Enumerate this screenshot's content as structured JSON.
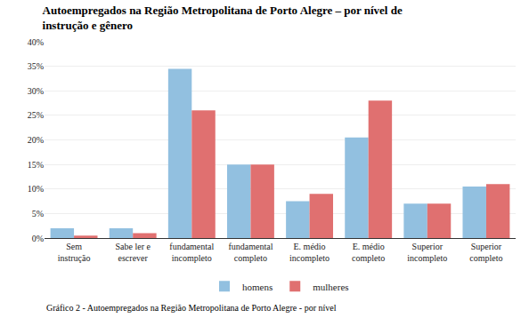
{
  "chart_data": {
    "type": "bar",
    "title": "Autoempregados na Região Metropolitana de Porto Alegre – por nível de\ninstrução e gênero",
    "caption": "Gráfico 2 - Autoempregados na Região Metropolitana de Porto Alegre - por nível",
    "categories": [
      "Sem\ninstrução",
      "Sabe ler e\nescrever",
      "fundamental\nincompleto",
      "fundamental\ncompleto",
      "E. médio\nincompleto",
      "E. médio\ncompleto",
      "Superior\nincompleto",
      "Superior\ncompleto"
    ],
    "series": [
      {
        "name": "homens",
        "color": "#92C0E0",
        "values": [
          2.0,
          2.0,
          34.5,
          15.0,
          7.5,
          20.5,
          7.0,
          10.5
        ]
      },
      {
        "name": "mulheres",
        "color": "#E07070",
        "values": [
          0.5,
          1.0,
          26.0,
          15.0,
          9.0,
          28.0,
          7.0,
          11.0
        ]
      }
    ],
    "ylim": [
      0,
      40
    ],
    "yticks": [
      {
        "value": 0,
        "label": "0%"
      },
      {
        "value": 5,
        "label": "5%"
      },
      {
        "value": 10,
        "label": "10%"
      },
      {
        "value": 15,
        "label": "15%"
      },
      {
        "value": 20,
        "label": "20%"
      },
      {
        "value": 25,
        "label": "25%"
      },
      {
        "value": 30,
        "label": "30%"
      },
      {
        "value": 35,
        "label": "35%"
      },
      {
        "value": 40,
        "label": "40%"
      }
    ],
    "grid": true,
    "legend": "bottom"
  }
}
